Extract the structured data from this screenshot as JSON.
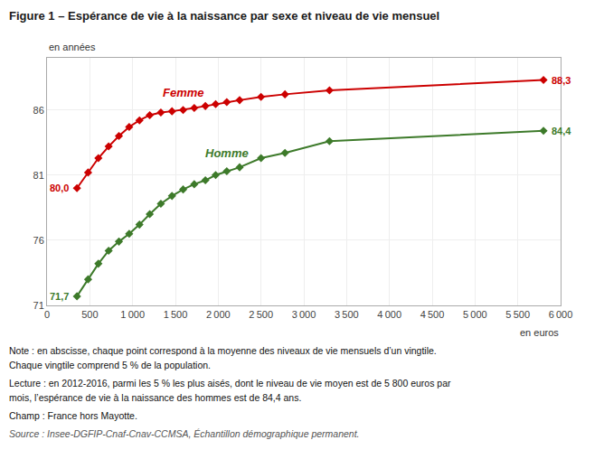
{
  "chart_data": {
    "type": "line",
    "title": "Figure 1 – Espérance de vie à la naissance par sexe et niveau de vie mensuel",
    "xlabel": "en euros",
    "ylabel": "en années",
    "x": [
      350,
      480,
      600,
      720,
      840,
      960,
      1080,
      1200,
      1330,
      1460,
      1590,
      1720,
      1850,
      1970,
      2100,
      2250,
      2500,
      2780,
      3300,
      5800
    ],
    "series": [
      {
        "name": "Femme",
        "color": "#cc0000",
        "marker": "diamond",
        "values": [
          80.0,
          81.2,
          82.3,
          83.2,
          84.0,
          84.7,
          85.2,
          85.6,
          85.8,
          85.9,
          86.0,
          86.15,
          86.3,
          86.45,
          86.6,
          86.75,
          87.0,
          87.2,
          87.5,
          88.3
        ],
        "value_labels": [
          "80,0",
          null,
          null,
          null,
          null,
          null,
          null,
          null,
          null,
          null,
          null,
          null,
          null,
          null,
          null,
          null,
          null,
          null,
          null,
          "88,3"
        ]
      },
      {
        "name": "Homme",
        "color": "#3d7a2a",
        "marker": "diamond",
        "values": [
          71.7,
          73.0,
          74.2,
          75.2,
          75.9,
          76.5,
          77.2,
          78.0,
          78.8,
          79.4,
          79.9,
          80.3,
          80.6,
          81.0,
          81.3,
          81.6,
          82.3,
          82.7,
          83.6,
          84.4
        ],
        "value_labels": [
          "71,7",
          null,
          null,
          null,
          null,
          null,
          null,
          null,
          null,
          null,
          null,
          null,
          null,
          null,
          null,
          null,
          null,
          null,
          null,
          "84,4"
        ]
      }
    ],
    "xlim": [
      0,
      6000
    ],
    "ylim": [
      71,
      90
    ],
    "xticks": [
      0,
      500,
      {
        "value": 1000,
        "label": "1 000"
      },
      {
        "value": 1500,
        "label": "1 500"
      },
      {
        "value": 2000,
        "label": "2 000"
      },
      {
        "value": 2500,
        "label": "2 500"
      },
      {
        "value": 3000,
        "label": "3 000"
      },
      {
        "value": 3500,
        "label": "3 500"
      },
      {
        "value": 4000,
        "label": "4 000"
      },
      {
        "value": 4500,
        "label": "4 500"
      },
      {
        "value": 5000,
        "label": "5 000"
      },
      {
        "value": 5500,
        "label": "5 500"
      },
      {
        "value": 6000,
        "label": "6 000"
      }
    ],
    "yticks": [
      71,
      76,
      81,
      86
    ],
    "grid": true,
    "notes": [
      "Note : en abscisse, chaque point correspond à la moyenne des niveaux de vie mensuels d’un vingtile.",
      "Chaque vingtile comprend 5 % de la population.",
      "Lecture : en 2012-2016, parmi les 5 % les plus aisés, dont le niveau de vie moyen est de 5 800 euros par",
      "mois, l’espérance de vie à la naissance des hommes est de 84,4 ans.",
      "Champ : France hors Mayotte."
    ],
    "source": "Source : Insee-DGFIP-Cnaf-Cnav-CCMSA, Échantillon démographique permanent."
  }
}
